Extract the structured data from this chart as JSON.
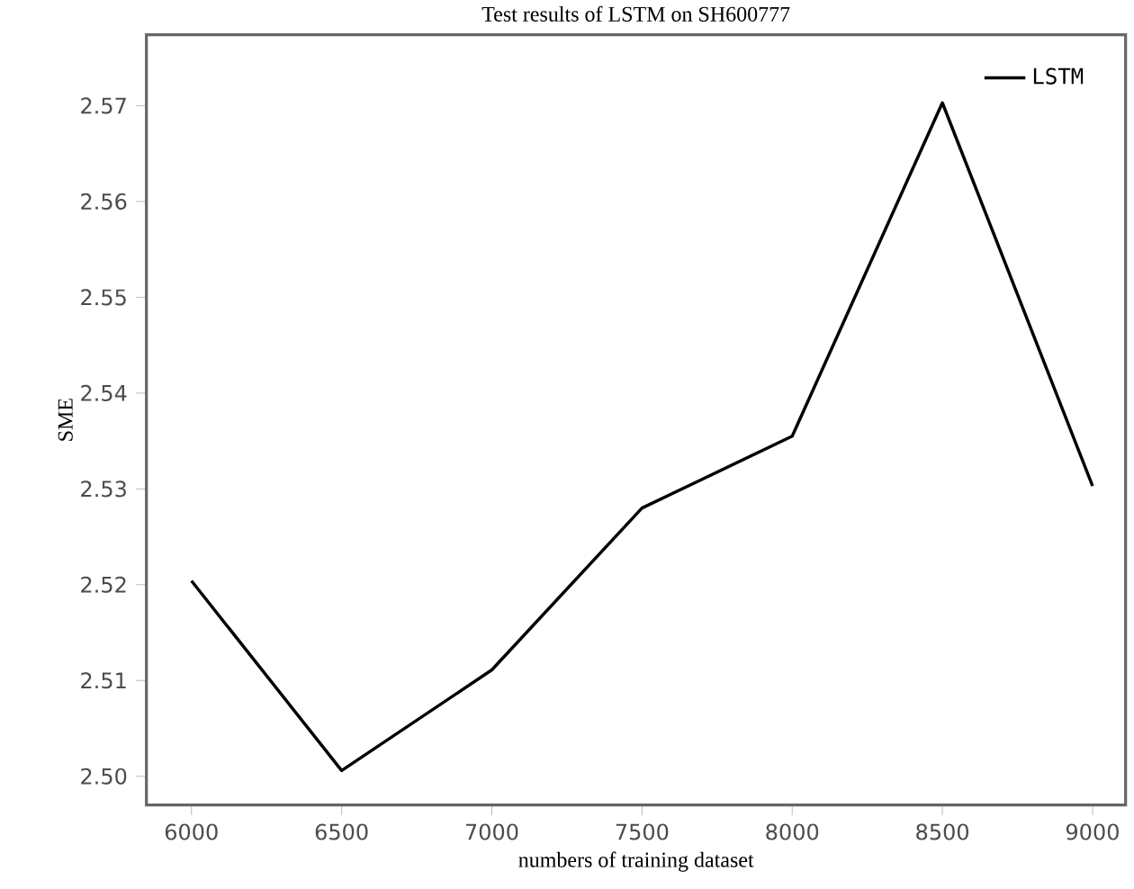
{
  "chart_data": {
    "type": "line",
    "title": "Test results of LSTM on SH600777",
    "xlabel": "numbers of training dataset",
    "ylabel": "SME",
    "x": [
      6000,
      6500,
      7000,
      7500,
      8000,
      8500,
      9000
    ],
    "series": [
      {
        "name": "LSTM",
        "color": "#000000",
        "values": [
          2.5204,
          2.5006,
          2.5111,
          2.528,
          2.5355,
          2.5703,
          2.5303
        ]
      }
    ],
    "xlim": [
      5850,
      9110
    ],
    "ylim": [
      2.497,
      2.5774
    ],
    "xticks": [
      6000,
      6500,
      7000,
      7500,
      8000,
      8500,
      9000
    ],
    "yticks": [
      {
        "value": 2.5,
        "label": "2.50"
      },
      2.51,
      2.52,
      2.53,
      2.54,
      2.55,
      2.56,
      2.57
    ],
    "legend": "top right",
    "grid": false,
    "line_style": "solid"
  }
}
